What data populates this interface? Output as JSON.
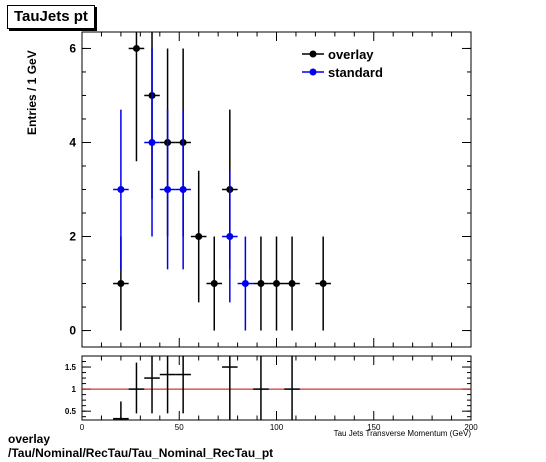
{
  "title": "TauJets pt",
  "footer": {
    "line1": "overlay",
    "line2": "/Tau/Nominal/RecTau/Tau_Nominal_RecTau_pt"
  },
  "colors": {
    "overlay": "#000000",
    "standard": "#0000ee",
    "ratio_line": "#cc0000"
  },
  "chart_data": [
    {
      "type": "scatter",
      "title": "TauJets pt",
      "xlabel": "Tau Jets Transverse Momentum (GeV)",
      "ylabel": "Entries / 1 GeV",
      "xlim": [
        0,
        200
      ],
      "ylim": [
        -0.35,
        6.35
      ],
      "yticks": [
        0,
        2,
        4,
        6
      ],
      "legend_position": "top-right",
      "series": [
        {
          "name": "overlay",
          "points": [
            {
              "x": 20,
              "xerr": 4,
              "y": 1,
              "ylo": 0,
              "yhi": 2
            },
            {
              "x": 28,
              "xerr": 4,
              "y": 6,
              "ylo": 3.6,
              "yhi": 8.4
            },
            {
              "x": 36,
              "xerr": 4,
              "y": 5,
              "ylo": 2.8,
              "yhi": 7.2
            },
            {
              "x": 44,
              "xerr": 4,
              "y": 4,
              "ylo": 2,
              "yhi": 6
            },
            {
              "x": 52,
              "xerr": 4,
              "y": 4,
              "ylo": 2,
              "yhi": 6
            },
            {
              "x": 60,
              "xerr": 4,
              "y": 2,
              "ylo": 0.6,
              "yhi": 3.4
            },
            {
              "x": 68,
              "xerr": 4,
              "y": 1,
              "ylo": 0,
              "yhi": 2
            },
            {
              "x": 76,
              "xerr": 4,
              "y": 3,
              "ylo": 1.3,
              "yhi": 4.7
            },
            {
              "x": 92,
              "xerr": 4,
              "y": 1,
              "ylo": 0,
              "yhi": 2
            },
            {
              "x": 100,
              "xerr": 4,
              "y": 1,
              "ylo": 0,
              "yhi": 2
            },
            {
              "x": 108,
              "xerr": 4,
              "y": 1,
              "ylo": 0,
              "yhi": 2
            },
            {
              "x": 124,
              "xerr": 4,
              "y": 1,
              "ylo": 0,
              "yhi": 2
            }
          ]
        },
        {
          "name": "standard",
          "points": [
            {
              "x": 20,
              "xerr": 4,
              "y": 3,
              "ylo": 1.3,
              "yhi": 4.7
            },
            {
              "x": 36,
              "xerr": 4,
              "y": 4,
              "ylo": 2,
              "yhi": 6
            },
            {
              "x": 44,
              "xerr": 4,
              "y": 3,
              "ylo": 1.3,
              "yhi": 4.7
            },
            {
              "x": 52,
              "xerr": 4,
              "y": 3,
              "ylo": 1.3,
              "yhi": 4.7
            },
            {
              "x": 76,
              "xerr": 4,
              "y": 2,
              "ylo": 0.6,
              "yhi": 3.4
            },
            {
              "x": 84,
              "xerr": 4,
              "y": 1,
              "ylo": 0,
              "yhi": 2
            }
          ]
        }
      ]
    },
    {
      "type": "scatter",
      "xlabel": "Tau Jets Transverse Momentum (GeV)",
      "xlim": [
        0,
        200
      ],
      "xticks": [
        0,
        50,
        100,
        150,
        200
      ],
      "ylim": [
        0.3,
        1.75
      ],
      "yticks": [
        0.5,
        1,
        1.5
      ],
      "ytick_labels": [
        "0.5",
        "1",
        "1.5"
      ],
      "reference_line": 1,
      "series": [
        {
          "name": "overlay / standard",
          "points": [
            {
              "x": 20,
              "xerr": 4,
              "y": 0.33,
              "ylo": 0.3,
              "yhi": 0.72
            },
            {
              "x": 28,
              "xerr": 4,
              "y": 1.0,
              "ylo": 0.45,
              "yhi": 1.6
            },
            {
              "x": 36,
              "xerr": 4,
              "y": 1.25,
              "ylo": 0.45,
              "yhi": 2.0
            },
            {
              "x": 44,
              "xerr": 4,
              "y": 1.33,
              "ylo": 0.45,
              "yhi": 2.2
            },
            {
              "x": 52,
              "xerr": 4,
              "y": 1.33,
              "ylo": 0.45,
              "yhi": 2.2
            },
            {
              "x": 76,
              "xerr": 4,
              "y": 1.5,
              "ylo": 0.3,
              "yhi": 2.2
            },
            {
              "x": 92,
              "xerr": 4,
              "y": 1.0,
              "ylo": 0.3,
              "yhi": 2.2
            },
            {
              "x": 108,
              "xerr": 4,
              "y": 1.0,
              "ylo": 0.3,
              "yhi": 2.2
            }
          ]
        }
      ]
    }
  ]
}
